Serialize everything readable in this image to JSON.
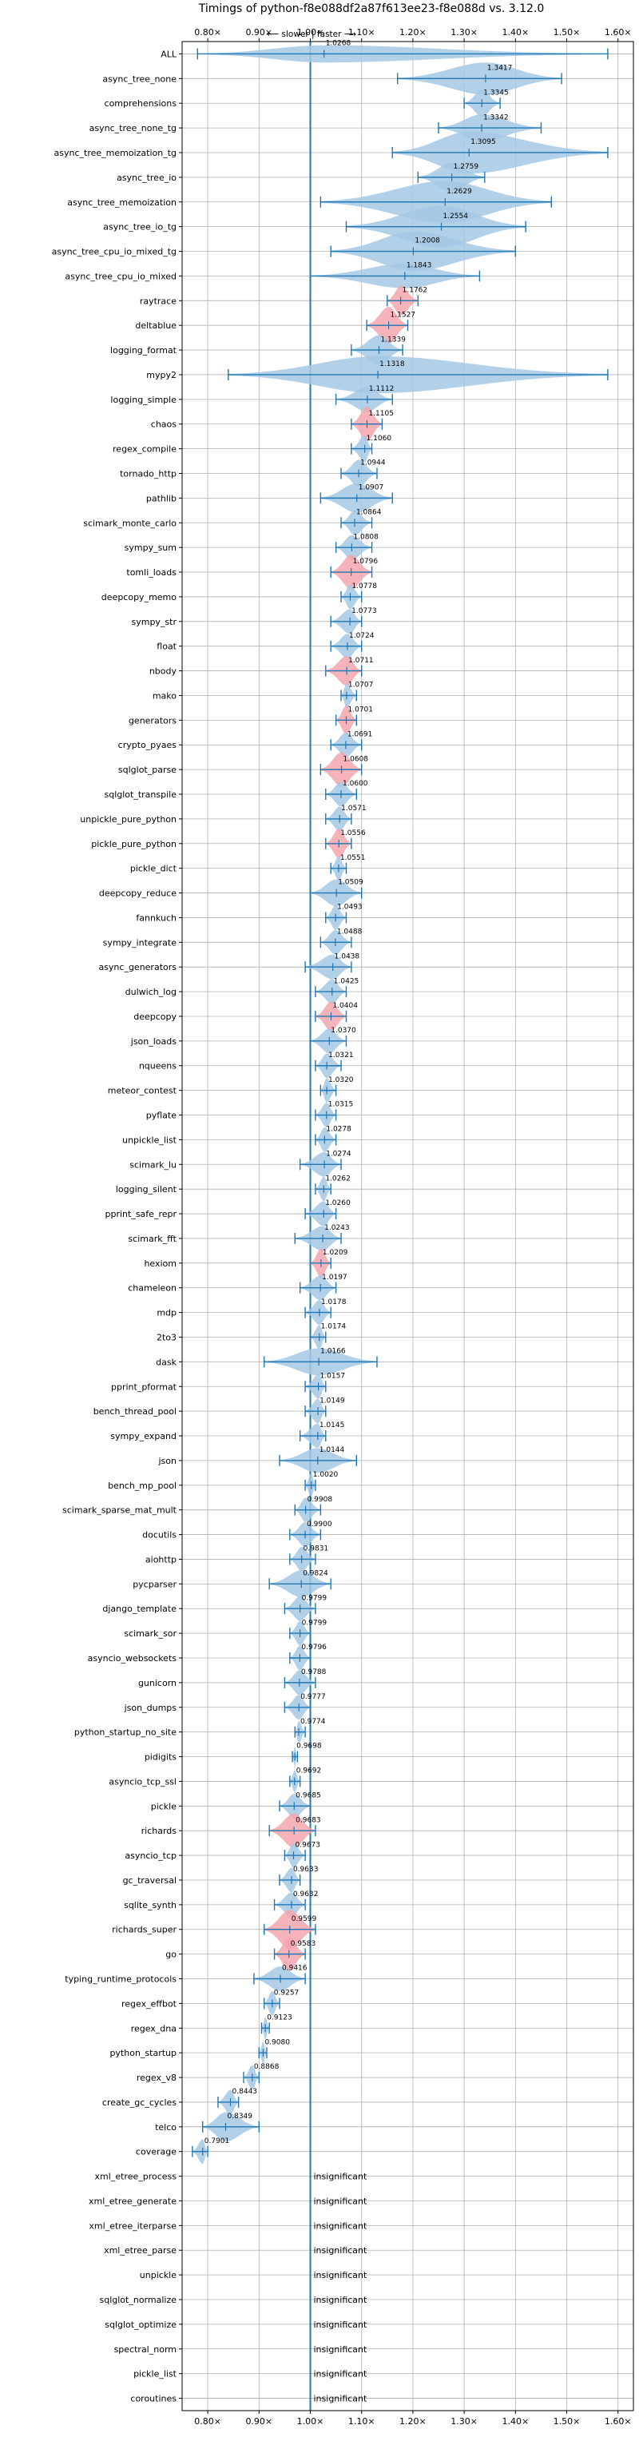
{
  "chart_data": {
    "type": "violin",
    "title": "Timings of python-f8e088df2a87f613ee23-f8e088d vs. 3.12.0",
    "direction_label": "⟵ slower | faster ⟶",
    "xlim": [
      0.75,
      1.63
    ],
    "x_ticks": [
      0.8,
      0.9,
      1.0,
      1.1,
      1.2,
      1.3,
      1.4,
      1.5,
      1.6
    ],
    "x_tick_labels": [
      "0.80×",
      "0.90×",
      "1.00×",
      "1.10×",
      "1.20×",
      "1.30×",
      "1.40×",
      "1.50×",
      "1.60×"
    ],
    "grid": true,
    "insignificant_label": "insignificant",
    "colors": {
      "neutral": "#a6c8e5",
      "slower": "#f4a6ad",
      "line": "#1f77b4"
    },
    "benchmarks": [
      {
        "name": "ALL",
        "value": 1.0268,
        "label": "1.0268",
        "lo": 0.78,
        "hi": 1.58,
        "w": 0.35,
        "c": "n",
        "sig": true
      },
      {
        "name": "async_tree_none",
        "value": 1.3417,
        "label": "1.3417",
        "lo": 1.17,
        "hi": 1.49,
        "w": 0.65,
        "c": "n",
        "sig": true
      },
      {
        "name": "comprehensions",
        "value": 1.3345,
        "label": "1.3345",
        "lo": 1.3,
        "hi": 1.37,
        "w": 0.55,
        "c": "n",
        "sig": true
      },
      {
        "name": "async_tree_none_tg",
        "value": 1.3342,
        "label": "1.3342",
        "lo": 1.25,
        "hi": 1.45,
        "w": 0.55,
        "c": "n",
        "sig": true
      },
      {
        "name": "async_tree_memoization_tg",
        "value": 1.3095,
        "label": "1.3095",
        "lo": 1.16,
        "hi": 1.58,
        "w": 0.85,
        "c": "n",
        "sig": true
      },
      {
        "name": "async_tree_io",
        "value": 1.2759,
        "label": "1.2759",
        "lo": 1.21,
        "hi": 1.34,
        "w": 0.6,
        "c": "n",
        "sig": true
      },
      {
        "name": "async_tree_memoization",
        "value": 1.2629,
        "label": "1.2629",
        "lo": 1.02,
        "hi": 1.47,
        "w": 0.85,
        "c": "n",
        "sig": true
      },
      {
        "name": "async_tree_io_tg",
        "value": 1.2554,
        "label": "1.2554",
        "lo": 1.07,
        "hi": 1.42,
        "w": 0.85,
        "c": "n",
        "sig": true
      },
      {
        "name": "async_tree_cpu_io_mixed_tg",
        "value": 1.2008,
        "label": "1.2008",
        "lo": 1.04,
        "hi": 1.4,
        "w": 0.8,
        "c": "n",
        "sig": true
      },
      {
        "name": "async_tree_cpu_io_mixed",
        "value": 1.1843,
        "label": "1.1843",
        "lo": 1.0,
        "hi": 1.33,
        "w": 0.5,
        "c": "n",
        "sig": true
      },
      {
        "name": "raytrace",
        "value": 1.1762,
        "label": "1.1762",
        "lo": 1.15,
        "hi": 1.21,
        "w": 0.6,
        "c": "s",
        "sig": true
      },
      {
        "name": "deltablue",
        "value": 1.1527,
        "label": "1.1527",
        "lo": 1.11,
        "hi": 1.19,
        "w": 0.75,
        "c": "s",
        "sig": true
      },
      {
        "name": "logging_format",
        "value": 1.1339,
        "label": "1.1339",
        "lo": 1.08,
        "hi": 1.18,
        "w": 0.6,
        "c": "n",
        "sig": true
      },
      {
        "name": "mypy2",
        "value": 1.1318,
        "label": "1.1318",
        "lo": 0.84,
        "hi": 1.58,
        "w": 0.75,
        "c": "n",
        "sig": true
      },
      {
        "name": "logging_simple",
        "value": 1.1112,
        "label": "1.1112",
        "lo": 1.05,
        "hi": 1.16,
        "w": 0.5,
        "c": "n",
        "sig": true
      },
      {
        "name": "chaos",
        "value": 1.1105,
        "label": "1.1105",
        "lo": 1.08,
        "hi": 1.14,
        "w": 0.7,
        "c": "s",
        "sig": true
      },
      {
        "name": "regex_compile",
        "value": 1.106,
        "label": "1.1060",
        "lo": 1.08,
        "hi": 1.12,
        "w": 0.55,
        "c": "n",
        "sig": true
      },
      {
        "name": "tornado_http",
        "value": 1.0944,
        "label": "1.0944",
        "lo": 1.06,
        "hi": 1.13,
        "w": 0.55,
        "c": "n",
        "sig": true
      },
      {
        "name": "pathlib",
        "value": 1.0907,
        "label": "1.0907",
        "lo": 1.02,
        "hi": 1.16,
        "w": 0.6,
        "c": "n",
        "sig": true
      },
      {
        "name": "scimark_monte_carlo",
        "value": 1.0864,
        "label": "1.0864",
        "lo": 1.06,
        "hi": 1.12,
        "w": 0.5,
        "c": "n",
        "sig": true
      },
      {
        "name": "sympy_sum",
        "value": 1.0808,
        "label": "1.0808",
        "lo": 1.05,
        "hi": 1.12,
        "w": 0.5,
        "c": "n",
        "sig": true
      },
      {
        "name": "tomli_loads",
        "value": 1.0796,
        "label": "1.0796",
        "lo": 1.04,
        "hi": 1.12,
        "w": 0.7,
        "c": "s",
        "sig": true
      },
      {
        "name": "deepcopy_memo",
        "value": 1.0778,
        "label": "1.0778",
        "lo": 1.06,
        "hi": 1.1,
        "w": 0.5,
        "c": "n",
        "sig": true
      },
      {
        "name": "sympy_str",
        "value": 1.0773,
        "label": "1.0773",
        "lo": 1.04,
        "hi": 1.1,
        "w": 0.5,
        "c": "n",
        "sig": true
      },
      {
        "name": "float",
        "value": 1.0724,
        "label": "1.0724",
        "lo": 1.04,
        "hi": 1.1,
        "w": 0.5,
        "c": "n",
        "sig": true
      },
      {
        "name": "nbody",
        "value": 1.0711,
        "label": "1.0711",
        "lo": 1.03,
        "hi": 1.1,
        "w": 0.6,
        "c": "s",
        "sig": true
      },
      {
        "name": "mako",
        "value": 1.0707,
        "label": "1.0707",
        "lo": 1.06,
        "hi": 1.09,
        "w": 0.5,
        "c": "n",
        "sig": true
      },
      {
        "name": "generators",
        "value": 1.0701,
        "label": "1.0701",
        "lo": 1.05,
        "hi": 1.09,
        "w": 0.6,
        "c": "s",
        "sig": true
      },
      {
        "name": "crypto_pyaes",
        "value": 1.0691,
        "label": "1.0691",
        "lo": 1.04,
        "hi": 1.1,
        "w": 0.5,
        "c": "n",
        "sig": true
      },
      {
        "name": "sqlglot_parse",
        "value": 1.0608,
        "label": "1.0608",
        "lo": 1.02,
        "hi": 1.1,
        "w": 0.7,
        "c": "s",
        "sig": true
      },
      {
        "name": "sqlglot_transpile",
        "value": 1.06,
        "label": "1.0600",
        "lo": 1.03,
        "hi": 1.09,
        "w": 0.5,
        "c": "n",
        "sig": true
      },
      {
        "name": "unpickle_pure_python",
        "value": 1.0571,
        "label": "1.0571",
        "lo": 1.03,
        "hi": 1.08,
        "w": 0.5,
        "c": "n",
        "sig": true
      },
      {
        "name": "pickle_pure_python",
        "value": 1.0556,
        "label": "1.0556",
        "lo": 1.03,
        "hi": 1.08,
        "w": 0.6,
        "c": "s",
        "sig": true
      },
      {
        "name": "pickle_dict",
        "value": 1.0551,
        "label": "1.0551",
        "lo": 1.04,
        "hi": 1.07,
        "w": 0.5,
        "c": "n",
        "sig": true
      },
      {
        "name": "deepcopy_reduce",
        "value": 1.0509,
        "label": "1.0509",
        "lo": 1.0,
        "hi": 1.1,
        "w": 0.55,
        "c": "n",
        "sig": true
      },
      {
        "name": "fannkuch",
        "value": 1.0493,
        "label": "1.0493",
        "lo": 1.03,
        "hi": 1.07,
        "w": 0.5,
        "c": "n",
        "sig": true
      },
      {
        "name": "sympy_integrate",
        "value": 1.0488,
        "label": "1.0488",
        "lo": 1.02,
        "hi": 1.08,
        "w": 0.5,
        "c": "n",
        "sig": true
      },
      {
        "name": "async_generators",
        "value": 1.0438,
        "label": "1.0438",
        "lo": 0.99,
        "hi": 1.08,
        "w": 0.5,
        "c": "n",
        "sig": true
      },
      {
        "name": "dulwich_log",
        "value": 1.0425,
        "label": "1.0425",
        "lo": 1.01,
        "hi": 1.07,
        "w": 0.5,
        "c": "n",
        "sig": true
      },
      {
        "name": "deepcopy",
        "value": 1.0404,
        "label": "1.0404",
        "lo": 1.01,
        "hi": 1.07,
        "w": 0.6,
        "c": "s",
        "sig": true
      },
      {
        "name": "json_loads",
        "value": 1.037,
        "label": "1.0370",
        "lo": 1.0,
        "hi": 1.07,
        "w": 0.5,
        "c": "n",
        "sig": true
      },
      {
        "name": "nqueens",
        "value": 1.0321,
        "label": "1.0321",
        "lo": 1.01,
        "hi": 1.06,
        "w": 0.5,
        "c": "n",
        "sig": true
      },
      {
        "name": "meteor_contest",
        "value": 1.032,
        "label": "1.0320",
        "lo": 1.02,
        "hi": 1.05,
        "w": 0.5,
        "c": "n",
        "sig": true
      },
      {
        "name": "pyflate",
        "value": 1.0315,
        "label": "1.0315",
        "lo": 1.01,
        "hi": 1.05,
        "w": 0.5,
        "c": "n",
        "sig": true
      },
      {
        "name": "unpickle_list",
        "value": 1.0278,
        "label": "1.0278",
        "lo": 1.01,
        "hi": 1.05,
        "w": 0.5,
        "c": "n",
        "sig": true
      },
      {
        "name": "scimark_lu",
        "value": 1.0274,
        "label": "1.0274",
        "lo": 0.98,
        "hi": 1.06,
        "w": 0.5,
        "c": "n",
        "sig": true
      },
      {
        "name": "logging_silent",
        "value": 1.0262,
        "label": "1.0262",
        "lo": 1.01,
        "hi": 1.04,
        "w": 0.5,
        "c": "n",
        "sig": true
      },
      {
        "name": "pprint_safe_repr",
        "value": 1.026,
        "label": "1.0260",
        "lo": 0.99,
        "hi": 1.05,
        "w": 0.5,
        "c": "n",
        "sig": true
      },
      {
        "name": "scimark_fft",
        "value": 1.0243,
        "label": "1.0243",
        "lo": 0.97,
        "hi": 1.06,
        "w": 0.5,
        "c": "n",
        "sig": true
      },
      {
        "name": "hexiom",
        "value": 1.0209,
        "label": "1.0209",
        "lo": 1.0,
        "hi": 1.04,
        "w": 0.6,
        "c": "s",
        "sig": true
      },
      {
        "name": "chameleon",
        "value": 1.0197,
        "label": "1.0197",
        "lo": 0.98,
        "hi": 1.05,
        "w": 0.5,
        "c": "n",
        "sig": true
      },
      {
        "name": "mdp",
        "value": 1.0178,
        "label": "1.0178",
        "lo": 0.99,
        "hi": 1.04,
        "w": 0.5,
        "c": "n",
        "sig": true
      },
      {
        "name": "2to3",
        "value": 1.0174,
        "label": "1.0174",
        "lo": 1.0,
        "hi": 1.03,
        "w": 0.5,
        "c": "n",
        "sig": true
      },
      {
        "name": "dask",
        "value": 1.0166,
        "label": "1.0166",
        "lo": 0.91,
        "hi": 1.13,
        "w": 0.55,
        "c": "n",
        "sig": true
      },
      {
        "name": "pprint_pformat",
        "value": 1.0157,
        "label": "1.0157",
        "lo": 0.99,
        "hi": 1.03,
        "w": 0.5,
        "c": "n",
        "sig": true
      },
      {
        "name": "bench_thread_pool",
        "value": 1.0149,
        "label": "1.0149",
        "lo": 0.99,
        "hi": 1.03,
        "w": 0.5,
        "c": "n",
        "sig": true
      },
      {
        "name": "sympy_expand",
        "value": 1.0145,
        "label": "1.0145",
        "lo": 0.98,
        "hi": 1.03,
        "w": 0.5,
        "c": "n",
        "sig": true
      },
      {
        "name": "json",
        "value": 1.0144,
        "label": "1.0144",
        "lo": 0.94,
        "hi": 1.09,
        "w": 0.5,
        "c": "n",
        "sig": true
      },
      {
        "name": "bench_mp_pool",
        "value": 1.002,
        "label": "1.0020",
        "lo": 0.99,
        "hi": 1.01,
        "w": 0.5,
        "c": "n",
        "sig": true
      },
      {
        "name": "scimark_sparse_mat_mult",
        "value": 0.9908,
        "label": "0.9908",
        "lo": 0.97,
        "hi": 1.02,
        "w": 0.5,
        "c": "n",
        "sig": true
      },
      {
        "name": "docutils",
        "value": 0.99,
        "label": "0.9900",
        "lo": 0.96,
        "hi": 1.02,
        "w": 0.5,
        "c": "n",
        "sig": true
      },
      {
        "name": "aiohttp",
        "value": 0.9831,
        "label": "0.9831",
        "lo": 0.96,
        "hi": 1.01,
        "w": 0.5,
        "c": "n",
        "sig": true
      },
      {
        "name": "pycparser",
        "value": 0.9824,
        "label": "0.9824",
        "lo": 0.92,
        "hi": 1.04,
        "w": 0.55,
        "c": "n",
        "sig": true
      },
      {
        "name": "django_template",
        "value": 0.9799,
        "label": "0.9799",
        "lo": 0.95,
        "hi": 1.01,
        "w": 0.5,
        "c": "n",
        "sig": true
      },
      {
        "name": "scimark_sor",
        "value": 0.9799,
        "label": "0.9799",
        "lo": 0.96,
        "hi": 1.0,
        "w": 0.5,
        "c": "n",
        "sig": true
      },
      {
        "name": "asyncio_websockets",
        "value": 0.9796,
        "label": "0.9796",
        "lo": 0.96,
        "hi": 1.0,
        "w": 0.5,
        "c": "n",
        "sig": true
      },
      {
        "name": "gunicorn",
        "value": 0.9788,
        "label": "0.9788",
        "lo": 0.95,
        "hi": 1.01,
        "w": 0.5,
        "c": "n",
        "sig": true
      },
      {
        "name": "json_dumps",
        "value": 0.9777,
        "label": "0.9777",
        "lo": 0.95,
        "hi": 1.0,
        "w": 0.5,
        "c": "n",
        "sig": true
      },
      {
        "name": "python_startup_no_site",
        "value": 0.9774,
        "label": "0.9774",
        "lo": 0.97,
        "hi": 0.99,
        "w": 0.45,
        "c": "n",
        "sig": true
      },
      {
        "name": "pidigits",
        "value": 0.9698,
        "label": "0.9698",
        "lo": 0.965,
        "hi": 0.975,
        "w": 0.4,
        "c": "n",
        "sig": true
      },
      {
        "name": "asyncio_tcp_ssl",
        "value": 0.9692,
        "label": "0.9692",
        "lo": 0.96,
        "hi": 0.98,
        "w": 0.45,
        "c": "n",
        "sig": true
      },
      {
        "name": "pickle",
        "value": 0.9685,
        "label": "0.9685",
        "lo": 0.94,
        "hi": 1.0,
        "w": 0.5,
        "c": "n",
        "sig": true
      },
      {
        "name": "richards",
        "value": 0.9683,
        "label": "0.9683",
        "lo": 0.92,
        "hi": 1.01,
        "w": 0.7,
        "c": "s",
        "sig": true
      },
      {
        "name": "asyncio_tcp",
        "value": 0.9673,
        "label": "0.9673",
        "lo": 0.95,
        "hi": 0.99,
        "w": 0.5,
        "c": "n",
        "sig": true
      },
      {
        "name": "gc_traversal",
        "value": 0.9633,
        "label": "0.9633",
        "lo": 0.94,
        "hi": 0.98,
        "w": 0.5,
        "c": "n",
        "sig": true
      },
      {
        "name": "sqlite_synth",
        "value": 0.9632,
        "label": "0.9632",
        "lo": 0.93,
        "hi": 0.99,
        "w": 0.5,
        "c": "n",
        "sig": true
      },
      {
        "name": "richards_super",
        "value": 0.9599,
        "label": "0.9599",
        "lo": 0.91,
        "hi": 1.01,
        "w": 0.8,
        "c": "s",
        "sig": true
      },
      {
        "name": "go",
        "value": 0.9583,
        "label": "0.9583",
        "lo": 0.93,
        "hi": 0.99,
        "w": 0.7,
        "c": "s",
        "sig": true
      },
      {
        "name": "typing_runtime_protocols",
        "value": 0.9416,
        "label": "0.9416",
        "lo": 0.89,
        "hi": 0.99,
        "w": 0.5,
        "c": "n",
        "sig": true
      },
      {
        "name": "regex_effbot",
        "value": 0.9257,
        "label": "0.9257",
        "lo": 0.91,
        "hi": 0.94,
        "w": 0.5,
        "c": "n",
        "sig": true
      },
      {
        "name": "regex_dna",
        "value": 0.9123,
        "label": "0.9123",
        "lo": 0.905,
        "hi": 0.92,
        "w": 0.45,
        "c": "n",
        "sig": true
      },
      {
        "name": "python_startup",
        "value": 0.908,
        "label": "0.9080",
        "lo": 0.9,
        "hi": 0.915,
        "w": 0.45,
        "c": "n",
        "sig": true
      },
      {
        "name": "regex_v8",
        "value": 0.8868,
        "label": "0.8868",
        "lo": 0.87,
        "hi": 0.9,
        "w": 0.5,
        "c": "n",
        "sig": true
      },
      {
        "name": "create_gc_cycles",
        "value": 0.8443,
        "label": "0.8443",
        "lo": 0.82,
        "hi": 0.86,
        "w": 0.5,
        "c": "n",
        "sig": true
      },
      {
        "name": "telco",
        "value": 0.8349,
        "label": "0.8349",
        "lo": 0.79,
        "hi": 0.9,
        "w": 0.6,
        "c": "n",
        "sig": true
      },
      {
        "name": "coverage",
        "value": 0.7901,
        "label": "0.7901",
        "lo": 0.77,
        "hi": 0.8,
        "w": 0.5,
        "c": "n",
        "sig": true
      },
      {
        "name": "xml_etree_process",
        "sig": false
      },
      {
        "name": "xml_etree_generate",
        "sig": false
      },
      {
        "name": "xml_etree_iterparse",
        "sig": false
      },
      {
        "name": "xml_etree_parse",
        "sig": false
      },
      {
        "name": "unpickle",
        "sig": false
      },
      {
        "name": "sqlglot_normalize",
        "sig": false
      },
      {
        "name": "sqlglot_optimize",
        "sig": false
      },
      {
        "name": "spectral_norm",
        "sig": false
      },
      {
        "name": "pickle_list",
        "sig": false
      },
      {
        "name": "coroutines",
        "sig": false
      }
    ]
  }
}
